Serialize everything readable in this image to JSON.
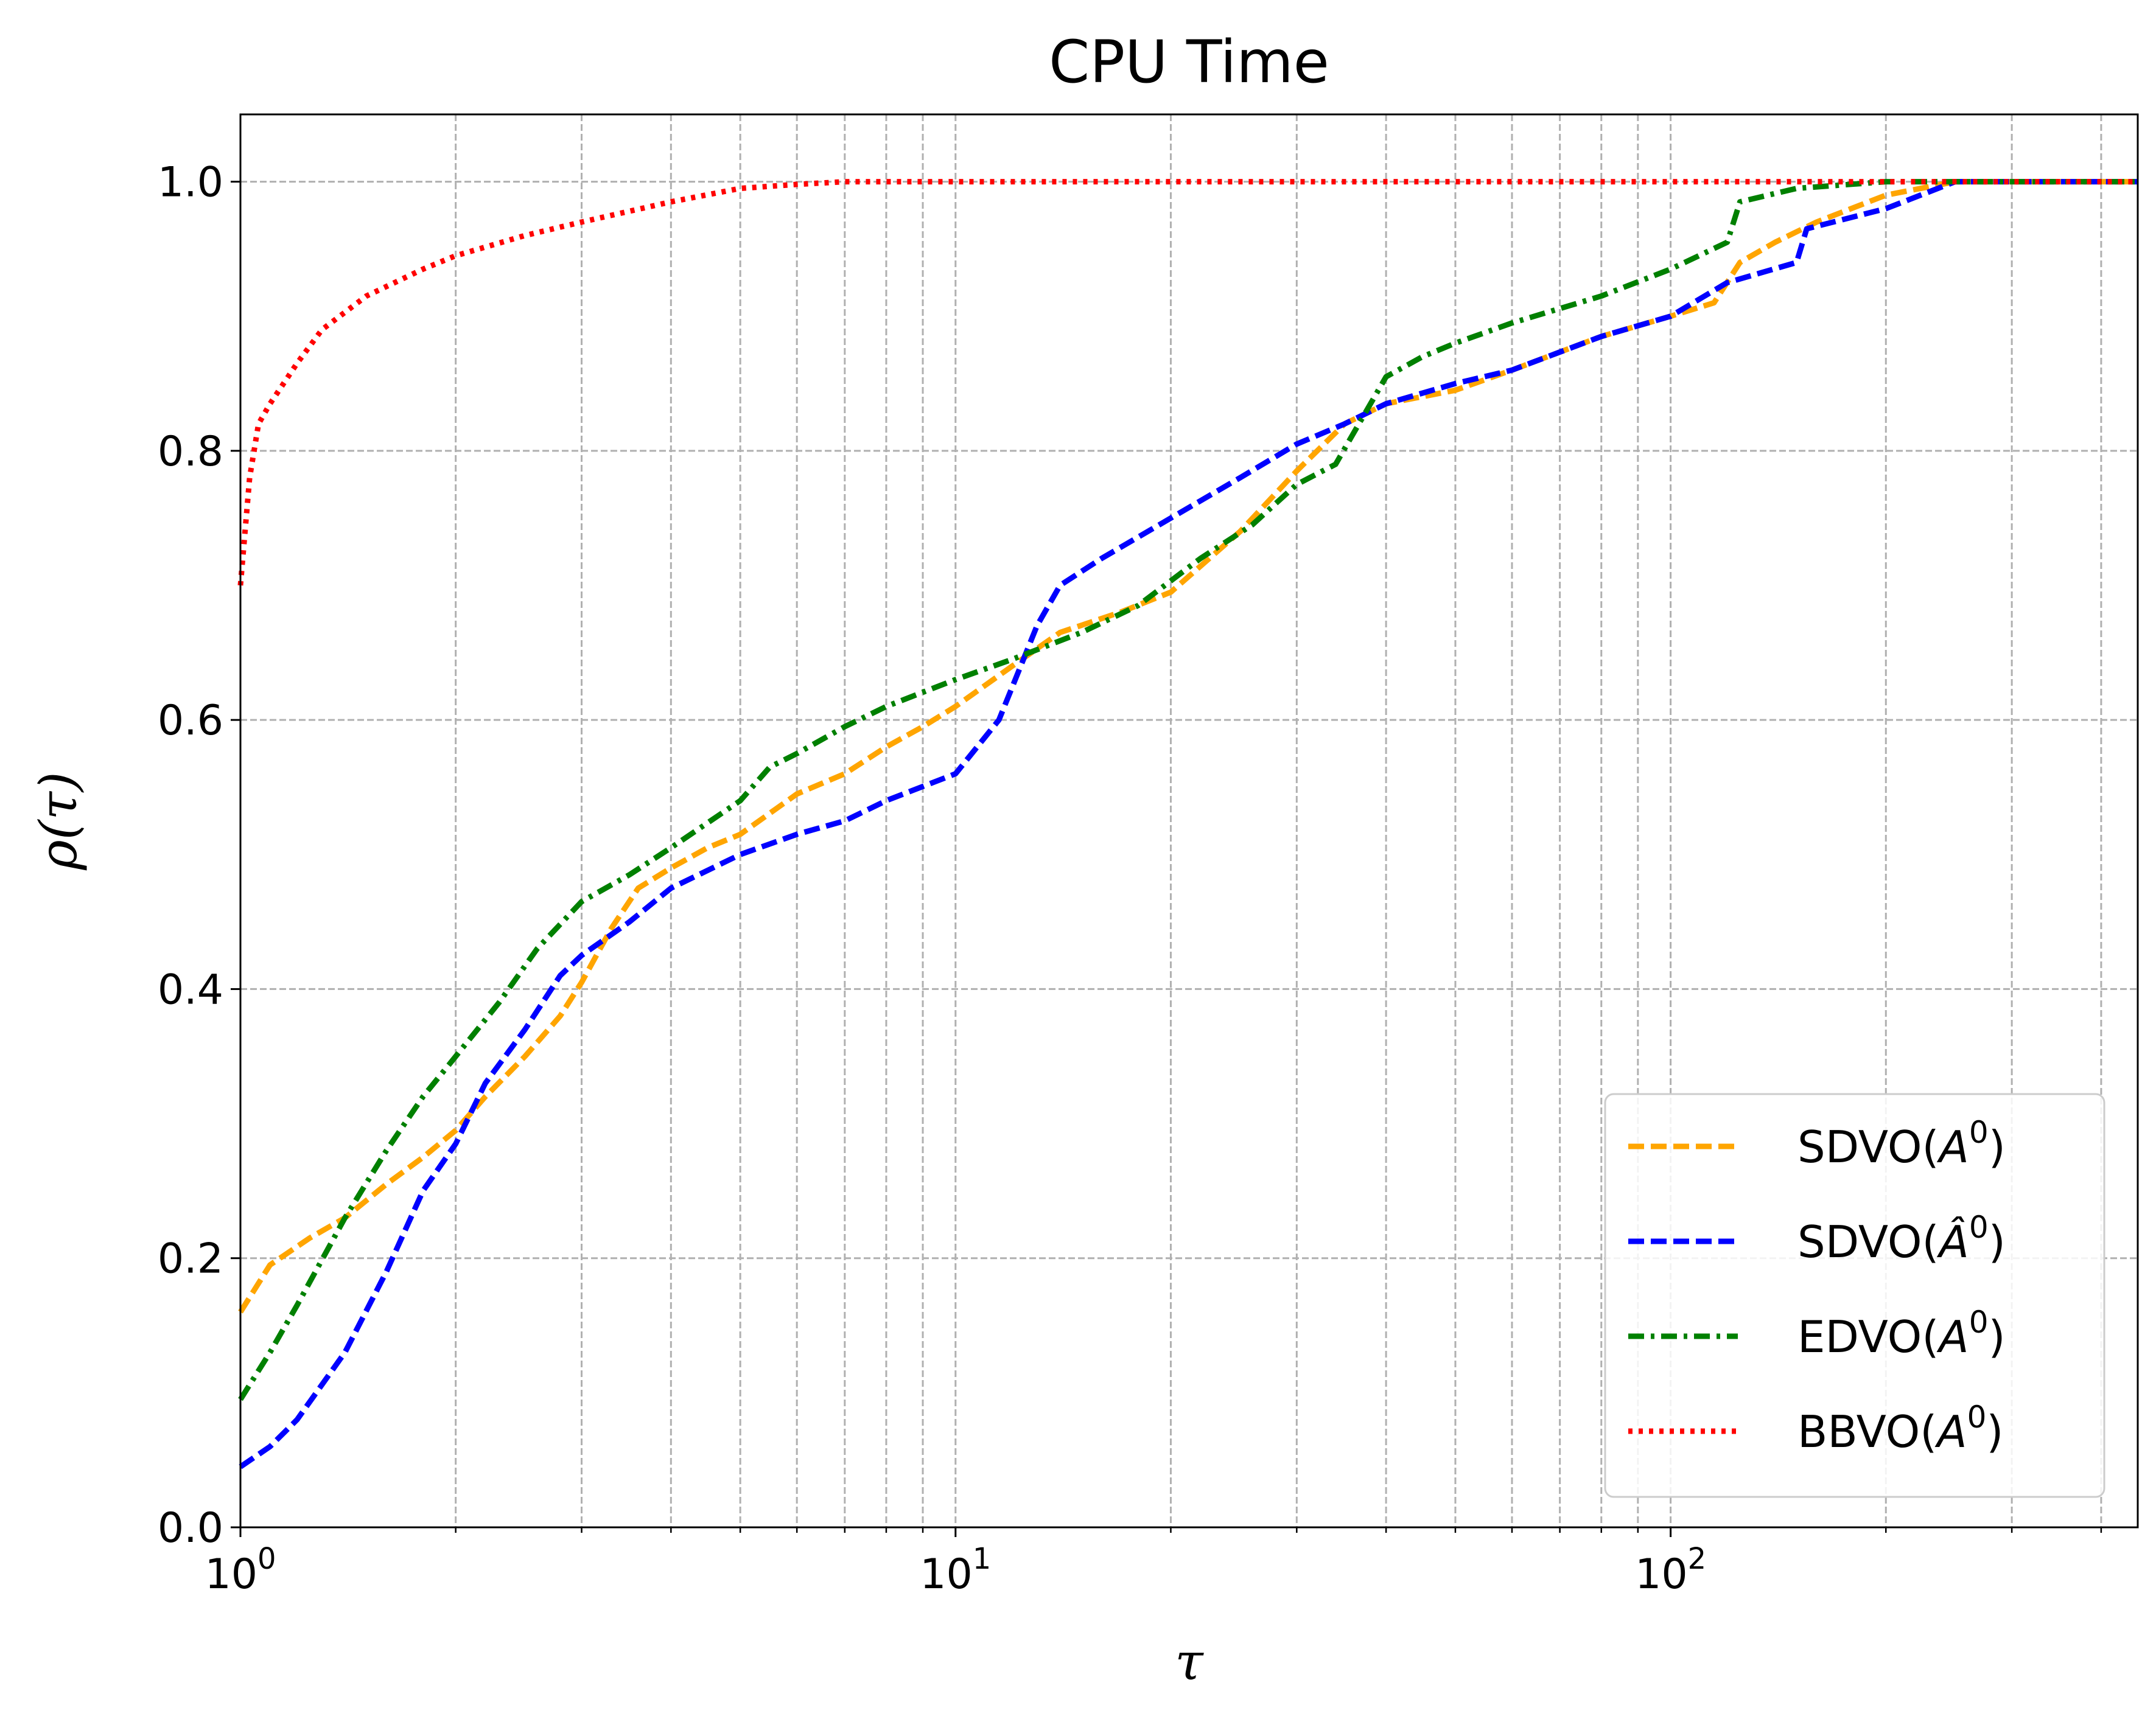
{
  "chart_data": {
    "type": "line",
    "title": "CPU Time",
    "xlabel": "τ",
    "ylabel": "ρ(τ)",
    "xscale": "log",
    "xlim": [
      1,
      450
    ],
    "ylim": [
      0.0,
      1.05
    ],
    "grid": true,
    "legend_position": "bottom-right",
    "x_ticks": [
      {
        "value": 1,
        "base": "10",
        "exp": "0"
      },
      {
        "value": 10,
        "base": "10",
        "exp": "1"
      },
      {
        "value": 100,
        "base": "10",
        "exp": "2"
      }
    ],
    "y_ticks": [
      "0.0",
      "0.2",
      "0.4",
      "0.6",
      "0.8",
      "1.0"
    ],
    "series": [
      {
        "name": "SDVO(A^0)",
        "legend_base": "SDVO(",
        "legend_sym": "A",
        "legend_hat": false,
        "legend_sup": "0",
        "legend_end": ")",
        "color": "#ffa500",
        "dash": "dashed",
        "points": [
          [
            1.0,
            0.16
          ],
          [
            1.1,
            0.195
          ],
          [
            1.25,
            0.215
          ],
          [
            1.4,
            0.23
          ],
          [
            1.6,
            0.255
          ],
          [
            1.8,
            0.275
          ],
          [
            2.0,
            0.295
          ],
          [
            2.2,
            0.32
          ],
          [
            2.5,
            0.35
          ],
          [
            2.8,
            0.38
          ],
          [
            3.0,
            0.405
          ],
          [
            3.3,
            0.445
          ],
          [
            3.6,
            0.475
          ],
          [
            4.0,
            0.49
          ],
          [
            4.5,
            0.505
          ],
          [
            5.0,
            0.515
          ],
          [
            6.0,
            0.545
          ],
          [
            7.0,
            0.56
          ],
          [
            8.0,
            0.58
          ],
          [
            9.0,
            0.595
          ],
          [
            10.0,
            0.61
          ],
          [
            12.0,
            0.64
          ],
          [
            14.0,
            0.665
          ],
          [
            17.0,
            0.68
          ],
          [
            20.0,
            0.695
          ],
          [
            25.0,
            0.74
          ],
          [
            30.0,
            0.785
          ],
          [
            35.0,
            0.82
          ],
          [
            40.0,
            0.835
          ],
          [
            50.0,
            0.845
          ],
          [
            60.0,
            0.86
          ],
          [
            80.0,
            0.885
          ],
          [
            100.0,
            0.9
          ],
          [
            115.0,
            0.91
          ],
          [
            125.0,
            0.94
          ],
          [
            140.0,
            0.955
          ],
          [
            160.0,
            0.97
          ],
          [
            200.0,
            0.99
          ],
          [
            250.0,
            1.0
          ],
          [
            450.0,
            1.0
          ]
        ]
      },
      {
        "name": "SDVO(Â^0)",
        "legend_base": "SDVO(",
        "legend_sym": "A",
        "legend_hat": true,
        "legend_sup": "0",
        "legend_end": ")",
        "color": "#0000ff",
        "dash": "dashed",
        "points": [
          [
            1.0,
            0.045
          ],
          [
            1.1,
            0.06
          ],
          [
            1.2,
            0.08
          ],
          [
            1.4,
            0.13
          ],
          [
            1.6,
            0.19
          ],
          [
            1.8,
            0.25
          ],
          [
            2.0,
            0.285
          ],
          [
            2.2,
            0.33
          ],
          [
            2.5,
            0.37
          ],
          [
            2.8,
            0.41
          ],
          [
            3.0,
            0.425
          ],
          [
            3.5,
            0.45
          ],
          [
            4.0,
            0.475
          ],
          [
            5.0,
            0.5
          ],
          [
            6.0,
            0.515
          ],
          [
            7.0,
            0.525
          ],
          [
            8.0,
            0.54
          ],
          [
            10.0,
            0.56
          ],
          [
            11.5,
            0.6
          ],
          [
            13.0,
            0.67
          ],
          [
            14.0,
            0.7
          ],
          [
            16.0,
            0.72
          ],
          [
            20.0,
            0.75
          ],
          [
            25.0,
            0.78
          ],
          [
            30.0,
            0.805
          ],
          [
            35.0,
            0.82
          ],
          [
            40.0,
            0.835
          ],
          [
            50.0,
            0.85
          ],
          [
            60.0,
            0.86
          ],
          [
            80.0,
            0.885
          ],
          [
            100.0,
            0.9
          ],
          [
            120.0,
            0.925
          ],
          [
            150.0,
            0.94
          ],
          [
            155.0,
            0.965
          ],
          [
            200.0,
            0.98
          ],
          [
            250.0,
            1.0
          ],
          [
            450.0,
            1.0
          ]
        ]
      },
      {
        "name": "EDVO(A^0)",
        "legend_base": "EDVO(",
        "legend_sym": "A",
        "legend_hat": false,
        "legend_sup": "0",
        "legend_end": ")",
        "color": "#008000",
        "dash": "dashdot",
        "points": [
          [
            1.0,
            0.095
          ],
          [
            1.1,
            0.13
          ],
          [
            1.2,
            0.165
          ],
          [
            1.4,
            0.23
          ],
          [
            1.6,
            0.28
          ],
          [
            1.8,
            0.32
          ],
          [
            2.0,
            0.35
          ],
          [
            2.3,
            0.39
          ],
          [
            2.6,
            0.43
          ],
          [
            3.0,
            0.465
          ],
          [
            3.5,
            0.485
          ],
          [
            4.0,
            0.505
          ],
          [
            5.0,
            0.54
          ],
          [
            5.5,
            0.565
          ],
          [
            6.0,
            0.575
          ],
          [
            7.0,
            0.595
          ],
          [
            8.0,
            0.61
          ],
          [
            10.0,
            0.63
          ],
          [
            12.0,
            0.645
          ],
          [
            15.0,
            0.665
          ],
          [
            18.0,
            0.685
          ],
          [
            22.0,
            0.72
          ],
          [
            26.0,
            0.745
          ],
          [
            30.0,
            0.775
          ],
          [
            34.0,
            0.79
          ],
          [
            40.0,
            0.855
          ],
          [
            45.0,
            0.87
          ],
          [
            50.0,
            0.88
          ],
          [
            60.0,
            0.895
          ],
          [
            80.0,
            0.915
          ],
          [
            100.0,
            0.935
          ],
          [
            120.0,
            0.955
          ],
          [
            125.0,
            0.985
          ],
          [
            150.0,
            0.995
          ],
          [
            200.0,
            1.0
          ],
          [
            450.0,
            1.0
          ]
        ]
      },
      {
        "name": "BBVO(A^0)",
        "legend_base": "BBVO(",
        "legend_sym": "A",
        "legend_hat": false,
        "legend_sup": "0",
        "legend_end": ")",
        "color": "#ff0000",
        "dash": "dotted",
        "points": [
          [
            1.0,
            0.7
          ],
          [
            1.03,
            0.78
          ],
          [
            1.06,
            0.82
          ],
          [
            1.1,
            0.835
          ],
          [
            1.2,
            0.865
          ],
          [
            1.3,
            0.89
          ],
          [
            1.5,
            0.915
          ],
          [
            1.8,
            0.935
          ],
          [
            2.0,
            0.945
          ],
          [
            2.5,
            0.96
          ],
          [
            3.0,
            0.97
          ],
          [
            4.0,
            0.985
          ],
          [
            5.0,
            0.995
          ],
          [
            6.0,
            0.998
          ],
          [
            7.0,
            1.0
          ],
          [
            450.0,
            1.0
          ]
        ]
      }
    ]
  }
}
